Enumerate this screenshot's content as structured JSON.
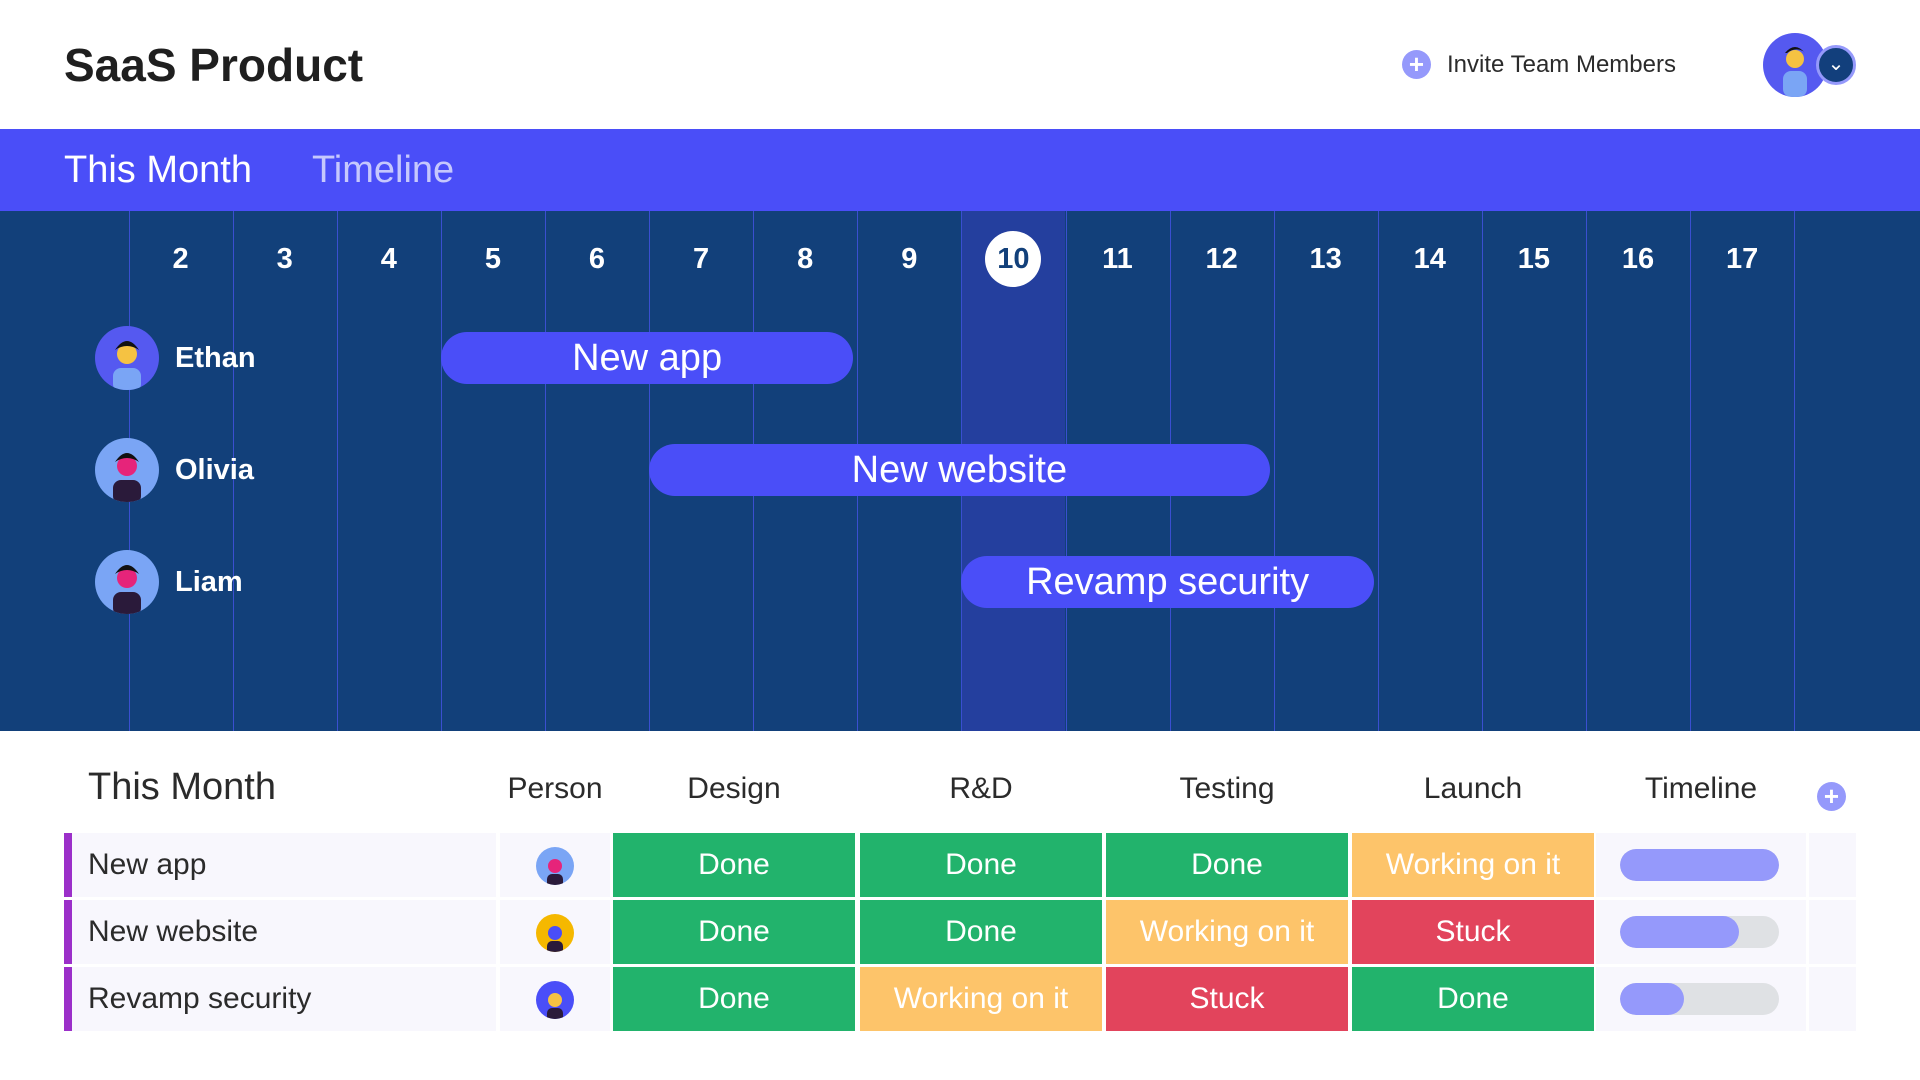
{
  "header": {
    "title": "SaaS Product",
    "invite_label": "Invite Team Members",
    "invite_icon": "plus-circle-icon",
    "account_icon": "chevron-down-icon"
  },
  "tabs": {
    "current": "This Month",
    "other": "Timeline"
  },
  "gantt": {
    "days": [
      "2",
      "3",
      "4",
      "5",
      "6",
      "7",
      "8",
      "9",
      "10",
      "11",
      "12",
      "13",
      "14",
      "15",
      "16",
      "17"
    ],
    "today": "10",
    "people": [
      {
        "name": "Ethan",
        "task": "New app",
        "start": 5,
        "end": 8
      },
      {
        "name": "Olivia",
        "task": "New website",
        "start": 7,
        "end": 12
      },
      {
        "name": "Liam",
        "task": "Revamp security",
        "start": 10,
        "end": 13
      }
    ]
  },
  "table": {
    "title": "This Month",
    "columns": [
      "Person",
      "Design",
      "R&D",
      "Testing",
      "Launch",
      "Timeline"
    ],
    "add_icon": "plus-circle-icon",
    "rows": [
      {
        "name": "New app",
        "statuses": [
          "Done",
          "Done",
          "Done",
          "Working on it"
        ],
        "timeline_progress": 1.0
      },
      {
        "name": "New website",
        "statuses": [
          "Done",
          "Done",
          "Working on it",
          "Stuck"
        ],
        "timeline_progress": 0.75
      },
      {
        "name": "Revamp security",
        "statuses": [
          "Done",
          "Working on it",
          "Stuck",
          "Done"
        ],
        "timeline_progress": 0.4
      }
    ]
  },
  "colors": {
    "Done": "#22b36c",
    "Working on it": "#fdc46a",
    "Stuck": "#e2445c",
    "accent": "#4a4ef8",
    "navy": "#12407a"
  }
}
